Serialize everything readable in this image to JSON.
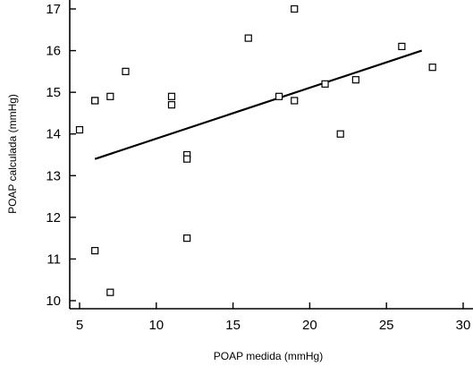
{
  "chart_data": {
    "type": "scatter",
    "title": "",
    "xlabel": "POAP medida (mmHg)",
    "ylabel": "POAP calculada (mmHg)",
    "xlim": [
      4.2,
      30
    ],
    "ylim": [
      9.8,
      17.2
    ],
    "x_ticks": [
      5,
      10,
      15,
      20,
      25,
      30
    ],
    "y_ticks": [
      10,
      11,
      12,
      13,
      14,
      15,
      16,
      17
    ],
    "grid": false,
    "legend": "none",
    "marker": "open-square",
    "colors": {
      "marker": "#000000",
      "line": "#000000",
      "axis": "#000000"
    },
    "points": [
      {
        "x": 5,
        "y": 14.1
      },
      {
        "x": 6,
        "y": 14.8
      },
      {
        "x": 6,
        "y": 14.8
      },
      {
        "x": 6,
        "y": 11.2
      },
      {
        "x": 7,
        "y": 14.9
      },
      {
        "x": 7,
        "y": 10.2
      },
      {
        "x": 8,
        "y": 15.5
      },
      {
        "x": 11,
        "y": 14.9
      },
      {
        "x": 11,
        "y": 14.7
      },
      {
        "x": 12,
        "y": 13.5
      },
      {
        "x": 12,
        "y": 13.4
      },
      {
        "x": 12,
        "y": 11.5
      },
      {
        "x": 16,
        "y": 16.3
      },
      {
        "x": 18,
        "y": 14.9
      },
      {
        "x": 19,
        "y": 17.0
      },
      {
        "x": 19,
        "y": 14.8
      },
      {
        "x": 21,
        "y": 15.2
      },
      {
        "x": 22,
        "y": 14.0
      },
      {
        "x": 23,
        "y": 15.3
      },
      {
        "x": 26,
        "y": 16.1
      },
      {
        "x": 28,
        "y": 15.6
      }
    ],
    "regression_line": {
      "x": [
        6,
        27.3
      ],
      "y": [
        13.4,
        16.0
      ]
    }
  }
}
